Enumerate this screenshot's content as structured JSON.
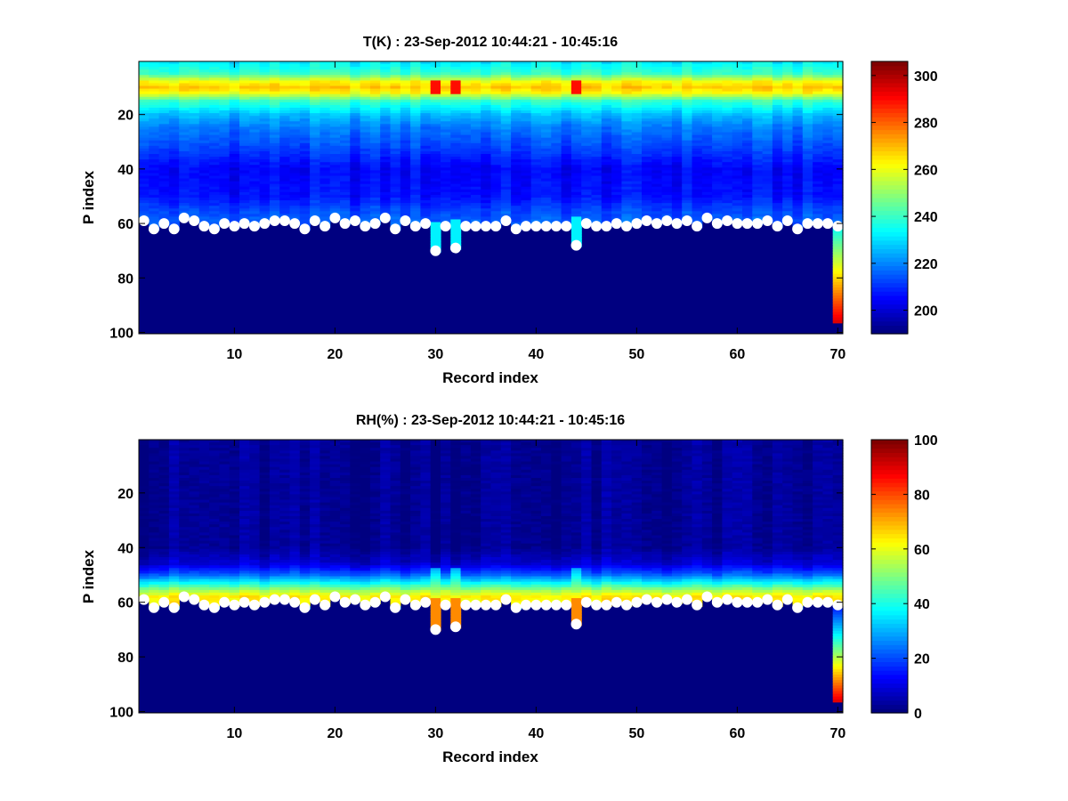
{
  "chart_data": [
    {
      "type": "heatmap",
      "title": "T(K) : 23-Sep-2012 10:44:21 - 10:45:16",
      "xlabel": "Record index",
      "ylabel": "P index",
      "xlim": [
        0.5,
        70.5
      ],
      "ylim": [
        0.5,
        100.5
      ],
      "y_reversed": true,
      "xticks": [
        10,
        20,
        30,
        40,
        50,
        60,
        70
      ],
      "yticks": [
        20,
        40,
        60,
        80,
        100
      ],
      "colorbar": {
        "min": 190,
        "max": 306,
        "ticks": [
          200,
          220,
          240,
          260,
          280,
          300
        ],
        "colormap": "jet"
      },
      "fill_value": 190,
      "profile_model": {
        "levels": [
          [
            1,
            232
          ],
          [
            5,
            240
          ],
          [
            8,
            262
          ],
          [
            10,
            268
          ],
          [
            12,
            262
          ],
          [
            15,
            240
          ],
          [
            20,
            226
          ],
          [
            25,
            218
          ],
          [
            30,
            214
          ],
          [
            40,
            204
          ],
          [
            50,
            206
          ],
          [
            55,
            212
          ],
          [
            60,
            216
          ]
        ],
        "hot_columns": [
          30,
          32,
          44
        ],
        "hot_value": 290
      },
      "last_column": {
        "record": 70,
        "from_p": 62,
        "to_p": 96,
        "values_from": 235,
        "values_to": 295
      },
      "marker_series": {
        "name": "",
        "x": [
          1,
          2,
          3,
          4,
          5,
          6,
          7,
          8,
          9,
          10,
          11,
          12,
          13,
          14,
          15,
          16,
          17,
          18,
          19,
          20,
          21,
          22,
          23,
          24,
          25,
          26,
          27,
          28,
          29,
          30,
          31,
          32,
          33,
          34,
          35,
          36,
          37,
          38,
          39,
          40,
          41,
          42,
          43,
          44,
          45,
          46,
          47,
          48,
          49,
          50,
          51,
          52,
          53,
          54,
          55,
          56,
          57,
          58,
          59,
          60,
          61,
          62,
          63,
          64,
          65,
          66,
          67,
          68,
          69,
          70
        ],
        "y": [
          59,
          62,
          60,
          62,
          58,
          59,
          61,
          62,
          60,
          61,
          60,
          61,
          60,
          59,
          59,
          60,
          62,
          59,
          61,
          58,
          60,
          59,
          61,
          60,
          58,
          62,
          59,
          61,
          60,
          70,
          61,
          69,
          61,
          61,
          61,
          61,
          59,
          62,
          61,
          61,
          61,
          61,
          61,
          68,
          60,
          61,
          61,
          60,
          61,
          60,
          59,
          60,
          59,
          60,
          59,
          61,
          58,
          60,
          59,
          60,
          60,
          60,
          59,
          61,
          59,
          62,
          60,
          60,
          60,
          61
        ]
      }
    },
    {
      "type": "heatmap",
      "title": "RH(%) : 23-Sep-2012 10:44:21 - 10:45:16",
      "xlabel": "Record index",
      "ylabel": "P index",
      "xlim": [
        0.5,
        70.5
      ],
      "ylim": [
        0.5,
        100.5
      ],
      "y_reversed": true,
      "xticks": [
        10,
        20,
        30,
        40,
        50,
        60,
        70
      ],
      "yticks": [
        20,
        40,
        60,
        80,
        100
      ],
      "colorbar": {
        "min": 0,
        "max": 100,
        "ticks": [
          0,
          20,
          40,
          60,
          80,
          100
        ],
        "colormap": "jet"
      },
      "fill_value": 0,
      "profile_model": {
        "levels": [
          [
            1,
            2
          ],
          [
            40,
            2
          ],
          [
            46,
            8
          ],
          [
            50,
            22
          ],
          [
            53,
            38
          ],
          [
            56,
            55
          ],
          [
            58,
            64
          ],
          [
            61,
            62
          ],
          [
            63,
            2
          ]
        ],
        "hot_columns": [
          30,
          32,
          44
        ],
        "hot_value": 74
      },
      "last_column": {
        "record": 70,
        "from_p": 62,
        "to_p": 96,
        "values_from": 15,
        "values_to": 90
      },
      "marker_series": {
        "name": "",
        "x": [
          1,
          2,
          3,
          4,
          5,
          6,
          7,
          8,
          9,
          10,
          11,
          12,
          13,
          14,
          15,
          16,
          17,
          18,
          19,
          20,
          21,
          22,
          23,
          24,
          25,
          26,
          27,
          28,
          29,
          30,
          31,
          32,
          33,
          34,
          35,
          36,
          37,
          38,
          39,
          40,
          41,
          42,
          43,
          44,
          45,
          46,
          47,
          48,
          49,
          50,
          51,
          52,
          53,
          54,
          55,
          56,
          57,
          58,
          59,
          60,
          61,
          62,
          63,
          64,
          65,
          66,
          67,
          68,
          69,
          70
        ],
        "y": [
          59,
          62,
          60,
          62,
          58,
          59,
          61,
          62,
          60,
          61,
          60,
          61,
          60,
          59,
          59,
          60,
          62,
          59,
          61,
          58,
          60,
          59,
          61,
          60,
          58,
          62,
          59,
          61,
          60,
          70,
          61,
          69,
          61,
          61,
          61,
          61,
          59,
          62,
          61,
          61,
          61,
          61,
          61,
          68,
          60,
          61,
          61,
          60,
          61,
          60,
          59,
          60,
          59,
          60,
          59,
          61,
          58,
          60,
          59,
          60,
          60,
          60,
          59,
          61,
          59,
          62,
          60,
          60,
          60,
          61
        ]
      }
    }
  ]
}
